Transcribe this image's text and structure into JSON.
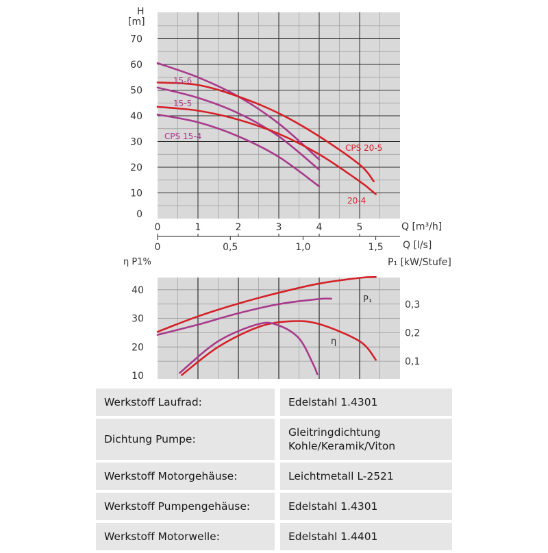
{
  "chart_data": [
    {
      "type": "line",
      "title": "",
      "ylabel_top": "H",
      "ylabel_unit": "[m]",
      "xlabel": "Q [m³/h]",
      "xlabel2": "Q [l/s]",
      "xlim": [
        0,
        6
      ],
      "ylim": [
        0,
        75
      ],
      "xticks": [
        0,
        1,
        2,
        3,
        4,
        5
      ],
      "xticks_labels": [
        "0",
        "1",
        "2",
        "3",
        "4",
        "5"
      ],
      "x2ticks": [
        0,
        0.5,
        1.0,
        1.5
      ],
      "x2ticks_labels": [
        "0",
        "0,5",
        "1,0",
        "1,5"
      ],
      "yticks": [
        0,
        10,
        20,
        30,
        40,
        50,
        60,
        70
      ],
      "grid": true,
      "series": [
        {
          "name": "15-6",
          "color": "#a83a8c",
          "points": [
            [
              0,
              60.5
            ],
            [
              1,
              55
            ],
            [
              2,
              47.5
            ],
            [
              3,
              37
            ],
            [
              4,
              23
            ]
          ]
        },
        {
          "name": "15-5",
          "color": "#a83a8c",
          "points": [
            [
              0,
              51
            ],
            [
              1,
              47
            ],
            [
              2,
              41
            ],
            [
              3,
              32
            ],
            [
              4,
              19
            ]
          ]
        },
        {
          "name": "CPS 15-4",
          "color": "#a83a8c",
          "points": [
            [
              0,
              40.5
            ],
            [
              1,
              37.5
            ],
            [
              2,
              32
            ],
            [
              3,
              24
            ],
            [
              4,
              12.5
            ]
          ]
        },
        {
          "name": "CPS 20-5",
          "color": "#d42027",
          "points": [
            [
              0,
              53
            ],
            [
              1,
              52
            ],
            [
              2,
              47.5
            ],
            [
              3,
              41
            ],
            [
              4,
              32
            ],
            [
              5,
              21
            ],
            [
              5.35,
              14.5
            ]
          ]
        },
        {
          "name": "20-4",
          "color": "#d42027",
          "points": [
            [
              0,
              43.5
            ],
            [
              1,
              42
            ],
            [
              2,
              38.5
            ],
            [
              3,
              33
            ],
            [
              4,
              25
            ],
            [
              5,
              14.5
            ],
            [
              5.4,
              9.5
            ]
          ]
        }
      ]
    },
    {
      "type": "line",
      "title": "",
      "ylabel_left": "η P1%",
      "ylabel_right": "P₁ [kW/Stufe]",
      "ylim_left": [
        10,
        45
      ],
      "yticks_left": [
        10,
        20,
        30,
        40
      ],
      "ylim_right": [
        0.05,
        0.4
      ],
      "yticks_right": [
        0.1,
        0.2,
        0.3
      ],
      "yticks_right_labels": [
        "0,1",
        "0,2",
        "0,3"
      ],
      "grid": true,
      "series": [
        {
          "name": "P₁",
          "color": "#d42027",
          "axis": "right",
          "points": [
            [
              0,
              0.203
            ],
            [
              1,
              0.257
            ],
            [
              2,
              0.302
            ],
            [
              3,
              0.34
            ],
            [
              4,
              0.372
            ],
            [
              5,
              0.392
            ],
            [
              5.4,
              0.395
            ]
          ]
        },
        {
          "name": "",
          "color": "#a83a8c",
          "axis": "right",
          "points": [
            [
              0,
              0.192
            ],
            [
              1,
              0.228
            ],
            [
              2,
              0.268
            ],
            [
              3,
              0.3
            ],
            [
              4,
              0.318
            ],
            [
              4.3,
              0.319
            ]
          ]
        },
        {
          "name": "η",
          "color": "#d42027",
          "axis": "left",
          "points": [
            [
              0.6,
              10.2
            ],
            [
              1.5,
              20
            ],
            [
              2.5,
              27
            ],
            [
              3.3,
              29
            ],
            [
              4,
              28
            ],
            [
              5,
              22
            ],
            [
              5.4,
              15.5
            ]
          ]
        },
        {
          "name": "",
          "color": "#a83a8c",
          "axis": "left",
          "points": [
            [
              0.55,
              10.9
            ],
            [
              1.5,
              22
            ],
            [
              2.5,
              28
            ],
            [
              3,
              27.5
            ],
            [
              3.5,
              23
            ],
            [
              3.85,
              14
            ],
            [
              3.95,
              10.5
            ]
          ]
        }
      ]
    }
  ],
  "table": {
    "rows": [
      {
        "label": "Werkstoff Laufrad:",
        "value": "Edelstahl 1.4301"
      },
      {
        "label": "Dichtung Pumpe:",
        "value": "Gleitringdichtung Kohle/Keramik/Viton"
      },
      {
        "label": "Werkstoff Motorgehäuse:",
        "value": "Leichtmetall L-2521"
      },
      {
        "label": "Werkstoff Pumpengehäuse:",
        "value": "Edelstahl 1.4301"
      },
      {
        "label": "Werkstoff Motorwelle:",
        "value": "Edelstahl 1.4401"
      }
    ]
  }
}
